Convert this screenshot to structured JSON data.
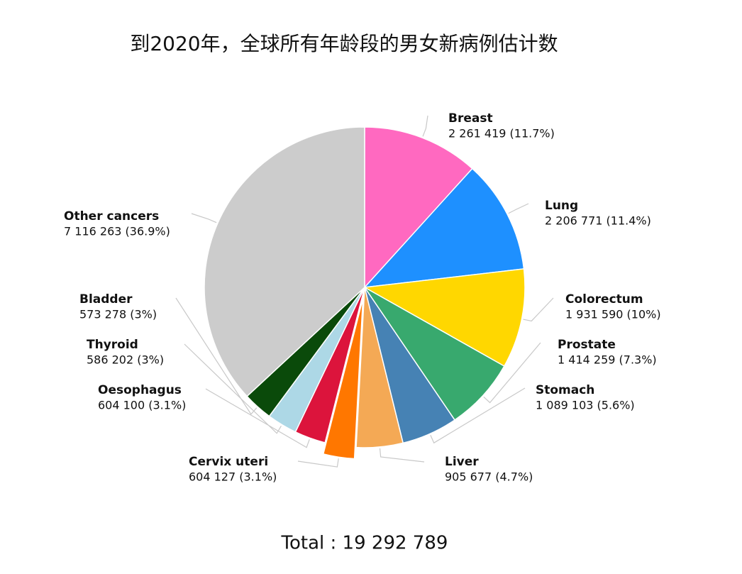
{
  "chart_data": {
    "type": "pie",
    "title": "到2020年，全球所有年龄段的男女新病例估计数",
    "categories": [
      "Breast",
      "Lung",
      "Colorectum",
      "Prostate",
      "Stomach",
      "Liver",
      "Cervix uteri",
      "Oesophagus",
      "Thyroid",
      "Bladder",
      "Other cancers"
    ],
    "values": [
      2261419,
      2206771,
      1931590,
      1414259,
      1089103,
      905677,
      604127,
      604100,
      586202,
      573278,
      7116263
    ],
    "value_labels": [
      "2 261 419 (11.7%)",
      "2 206 771 (11.4%)",
      "1 931 590 (10%)",
      "1 414 259 (7.3%)",
      "1 089 103 (5.6%)",
      "905 677 (4.7%)",
      "604 127 (3.1%)",
      "604 100 (3.1%)",
      "586 202 (3%)",
      "573 278 (3%)",
      "7 116 263 (36.9%)"
    ],
    "colors": [
      "#ff69c0",
      "#1e90ff",
      "#ffd700",
      "#38a96e",
      "#4682b4",
      "#f4a955",
      "#ff7700",
      "#dc143c",
      "#add8e6",
      "#0a4a0a",
      "#cccccc"
    ],
    "explode": [
      false,
      false,
      false,
      false,
      false,
      false,
      true,
      false,
      false,
      false,
      false
    ],
    "total": "Total : 19 292 789"
  }
}
